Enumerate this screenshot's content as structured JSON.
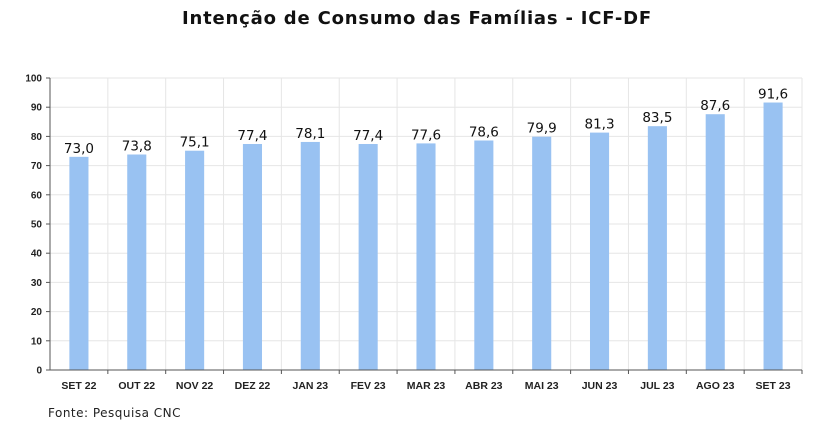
{
  "chart_data": {
    "type": "bar",
    "title": "Intenção de Consumo das Famílias - ICF-DF",
    "categories": [
      "SET 22",
      "OUT 22",
      "NOV 22",
      "DEZ 22",
      "JAN 23",
      "FEV 23",
      "MAR 23",
      "ABR 23",
      "MAI 23",
      "JUN 23",
      "JUL 23",
      "AGO 23",
      "SET 23"
    ],
    "values": [
      73.0,
      73.8,
      75.1,
      77.4,
      78.1,
      77.4,
      77.6,
      78.6,
      79.9,
      81.3,
      83.5,
      87.6,
      91.6
    ],
    "data_labels": [
      "73,0",
      "73,8",
      "75,1",
      "77,4",
      "78,1",
      "77,4",
      "77,6",
      "78,6",
      "79,9",
      "81,3",
      "83,5",
      "87,6",
      "91,6"
    ],
    "ylim": [
      0,
      100
    ],
    "yticks": [
      0,
      10,
      20,
      30,
      40,
      50,
      60,
      70,
      80,
      90,
      100
    ],
    "xlabel": "",
    "ylabel": "",
    "grid": true,
    "bar_color": "#99c2f2",
    "grid_color": "#e6e6e6"
  },
  "footer": {
    "source": "Fonte: Pesquisa  CNC"
  }
}
